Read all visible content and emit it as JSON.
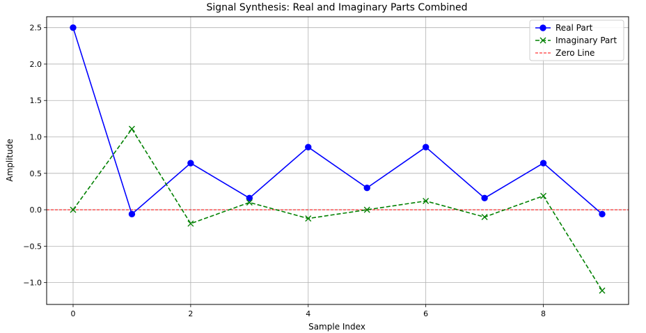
{
  "chart_data": {
    "type": "line",
    "title": "Signal Synthesis: Real and Imaginary Parts Combined",
    "xlabel": "Sample Index",
    "ylabel": "Amplitude",
    "x": [
      0,
      1,
      2,
      3,
      4,
      5,
      6,
      7,
      8,
      9
    ],
    "xlim": [
      -0.45,
      9.45
    ],
    "ylim": [
      -1.3,
      2.65
    ],
    "xticks": [
      0,
      2,
      4,
      6,
      8
    ],
    "xtick_labels": [
      "0",
      "2",
      "4",
      "6",
      "8"
    ],
    "yticks": [
      -1.0,
      -0.5,
      0.0,
      0.5,
      1.0,
      1.5,
      2.0,
      2.5
    ],
    "ytick_labels": [
      "−1.0",
      "−0.5",
      "0.0",
      "0.5",
      "1.0",
      "1.5",
      "2.0",
      "2.5"
    ],
    "grid": true,
    "legend_position": "top-right",
    "series": [
      {
        "name": "Real Part",
        "values": [
          2.5,
          -0.06,
          0.64,
          0.16,
          0.86,
          0.3,
          0.86,
          0.16,
          0.64,
          -0.06
        ],
        "color": "#0000ff",
        "line_style": "solid",
        "marker": "circle"
      },
      {
        "name": "Imaginary Part",
        "values": [
          0.0,
          1.11,
          -0.19,
          0.1,
          -0.12,
          0.0,
          0.12,
          -0.1,
          0.19,
          -1.11
        ],
        "color": "#008000",
        "line_style": "dashed",
        "marker": "x"
      }
    ],
    "reference_lines": [
      {
        "name": "Zero Line",
        "y": 0,
        "color": "#ff0000",
        "line_style": "dashed"
      }
    ]
  }
}
